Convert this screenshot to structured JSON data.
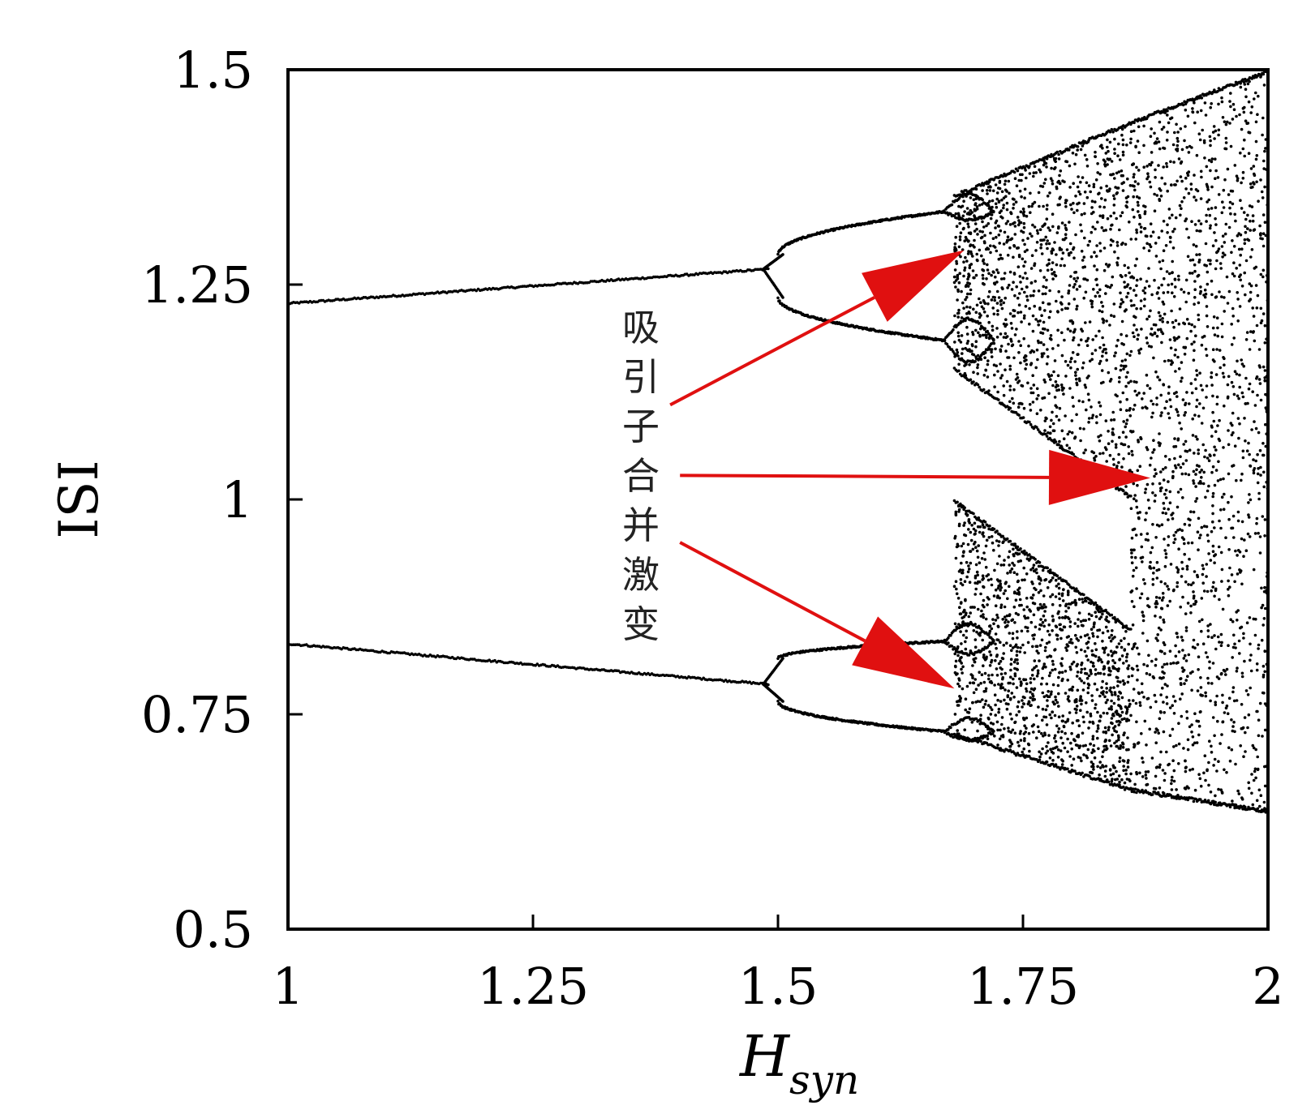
{
  "chart_data": {
    "type": "scatter",
    "xlabel": "H",
    "xlabel_subscript": "syn",
    "ylabel": "ISI",
    "xlim": [
      1,
      2
    ],
    "ylim": [
      0.5,
      1.5
    ],
    "xticks": [
      {
        "value": 1,
        "label": "1"
      },
      {
        "value": 1.25,
        "label": "1.25"
      },
      {
        "value": 1.5,
        "label": "1.5"
      },
      {
        "value": 1.75,
        "label": "1.75"
      },
      {
        "value": 2,
        "label": "2"
      }
    ],
    "yticks": [
      {
        "value": 0.5,
        "label": "0.5"
      },
      {
        "value": 0.75,
        "label": "0.75"
      },
      {
        "value": 1,
        "label": "1"
      },
      {
        "value": 1.25,
        "label": "1.25"
      },
      {
        "value": 1.5,
        "label": "1.5"
      }
    ],
    "grid": false,
    "series": [
      {
        "description_points": "bifurcation diagram of ISI versus H_syn",
        "period2_branches": [
          {
            "x": [
              1.0,
              1.49
            ],
            "y": [
              1.228,
              1.268
            ]
          },
          {
            "x": [
              1.0,
              1.49
            ],
            "y": [
              0.832,
              0.785
            ]
          }
        ],
        "period4_upper": [
          {
            "x": [
              1.5,
              1.67
            ],
            "y": [
              1.285,
              1.335
            ]
          },
          {
            "x": [
              1.5,
              1.67
            ],
            "y": [
              1.235,
              1.185
            ]
          }
        ],
        "period4_lower": [
          {
            "x": [
              1.5,
              1.67
            ],
            "y": [
              0.815,
              0.835
            ]
          },
          {
            "x": [
              1.5,
              1.67
            ],
            "y": [
              0.765,
              0.73
            ]
          }
        ],
        "chaotic_upper_band": {
          "x": [
            1.68,
            1.86
          ],
          "y_top": [
            1.355,
            1.44
          ],
          "y_bottom": [
            1.15,
            1.0
          ]
        },
        "chaotic_lower_band": {
          "x": [
            1.68,
            1.86
          ],
          "y_top": [
            1.0,
            0.85
          ],
          "y_bottom": [
            0.725,
            0.66
          ]
        },
        "merged_chaos": {
          "x": [
            1.86,
            2.0
          ],
          "y_top": [
            1.44,
            1.5
          ],
          "y_bottom": [
            0.66,
            0.635
          ]
        }
      }
    ],
    "annotation": {
      "text": [
        "吸",
        "引",
        "子",
        "合",
        "并",
        "激",
        "变"
      ],
      "arrow_color": "#e01010",
      "arrows": [
        {
          "from": [
            1.39,
            1.11
          ],
          "to": [
            1.69,
            1.29
          ]
        },
        {
          "from": [
            1.4,
            1.028
          ],
          "to": [
            1.88,
            1.025
          ]
        },
        {
          "from": [
            1.4,
            0.95
          ],
          "to": [
            1.68,
            0.78
          ]
        }
      ]
    },
    "point_color": "#000000"
  }
}
